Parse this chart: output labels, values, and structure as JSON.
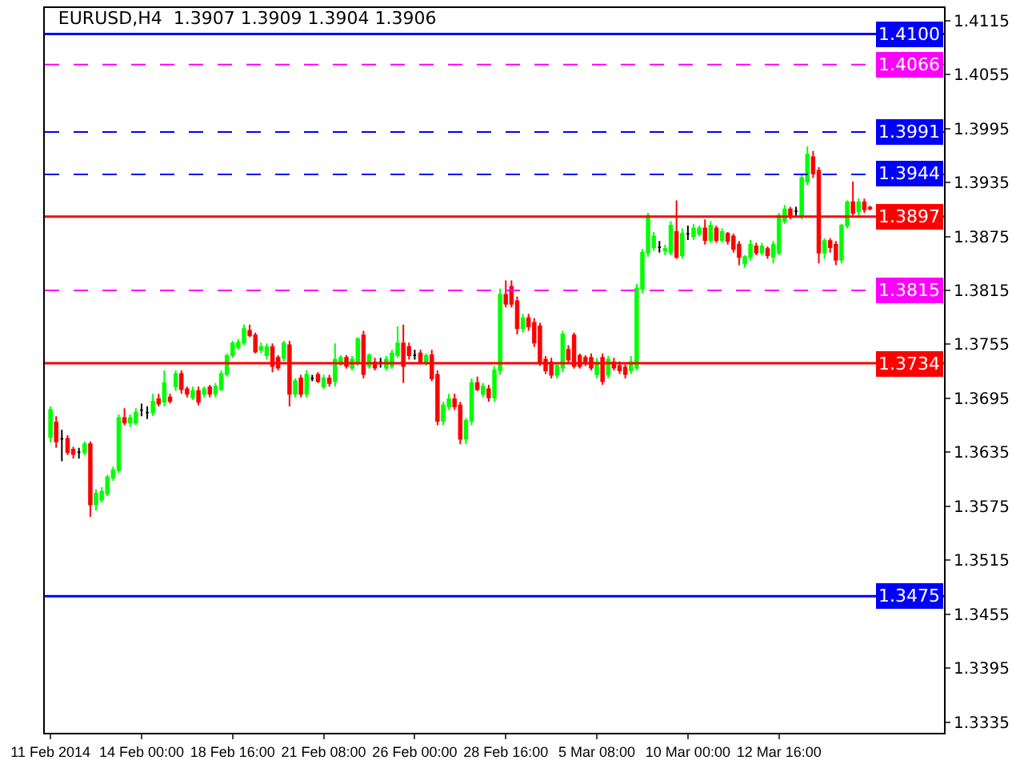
{
  "chart_data": {
    "type": "candlestick",
    "title": "EURUSD,H4  1.3907 1.3909 1.3904 1.3906",
    "categories": [
      "11 Feb 2014",
      null,
      null,
      null,
      null,
      null,
      null,
      null,
      null,
      null,
      null,
      null,
      null,
      null,
      null,
      null,
      "14 Feb 00:00",
      null,
      null,
      null,
      null,
      null,
      null,
      null,
      null,
      null,
      null,
      null,
      null,
      null,
      null,
      null,
      "18 Feb 16:00",
      null,
      null,
      null,
      null,
      null,
      null,
      null,
      null,
      null,
      null,
      null,
      null,
      null,
      null,
      null,
      "21 Feb 08:00",
      null,
      null,
      null,
      null,
      null,
      null,
      null,
      null,
      null,
      null,
      null,
      null,
      null,
      null,
      null,
      "26 Feb 00:00",
      null,
      null,
      null,
      null,
      null,
      null,
      null,
      null,
      null,
      null,
      null,
      null,
      null,
      null,
      null,
      "28 Feb 16:00",
      null,
      null,
      null,
      null,
      null,
      null,
      null,
      null,
      null,
      null,
      null,
      null,
      null,
      null,
      null,
      "5 Mar 08:00",
      null,
      null,
      null,
      null,
      null,
      null,
      null,
      null,
      null,
      null,
      null,
      null,
      null,
      null,
      null,
      "10 Mar 00:00",
      null,
      null,
      null,
      null,
      null,
      null,
      null,
      null,
      null,
      null,
      null,
      null,
      null,
      null,
      null,
      "12 Mar 16:00",
      null,
      null,
      null,
      null,
      null,
      null,
      null,
      null,
      null,
      null,
      null,
      null,
      null,
      null,
      null,
      null
    ],
    "ohlc": [
      [
        1.3652,
        1.3686,
        1.3646,
        1.3682
      ],
      [
        1.3668,
        1.3675,
        1.364,
        1.3647
      ],
      [
        1.365,
        1.366,
        1.3625,
        1.365
      ],
      [
        1.365,
        1.3654,
        1.3632,
        1.3635
      ],
      [
        1.3638,
        1.3641,
        1.3628,
        1.3633
      ],
      [
        1.3635,
        1.364,
        1.3628,
        1.3635
      ],
      [
        1.3635,
        1.3647,
        1.3632,
        1.3644
      ],
      [
        1.3644,
        1.3647,
        1.3563,
        1.3577
      ],
      [
        1.3577,
        1.3594,
        1.357,
        1.3589
      ],
      [
        1.3582,
        1.3596,
        1.3579,
        1.3591
      ],
      [
        1.3589,
        1.361,
        1.3586,
        1.3607
      ],
      [
        1.3607,
        1.3619,
        1.3603,
        1.3615
      ],
      [
        1.3615,
        1.3677,
        1.3612,
        1.3673
      ],
      [
        1.3673,
        1.3684,
        1.3665,
        1.3668
      ],
      [
        1.3668,
        1.3677,
        1.3663,
        1.3673
      ],
      [
        1.3668,
        1.3684,
        1.3665,
        1.3679
      ],
      [
        1.3682,
        1.3689,
        1.3675,
        1.3682
      ],
      [
        1.3679,
        1.3686,
        1.3672,
        1.3679
      ],
      [
        1.3679,
        1.37,
        1.3675,
        1.3691
      ],
      [
        1.3694,
        1.37,
        1.3686,
        1.3689
      ],
      [
        1.3691,
        1.3726,
        1.3686,
        1.3712
      ],
      [
        1.3696,
        1.37,
        1.3689,
        1.3692
      ],
      [
        1.3708,
        1.3726,
        1.3703,
        1.3722
      ],
      [
        1.3722,
        1.3726,
        1.37,
        1.3705
      ],
      [
        1.3705,
        1.3708,
        1.3696,
        1.37
      ],
      [
        1.3696,
        1.3708,
        1.3693,
        1.3703
      ],
      [
        1.3703,
        1.3708,
        1.3687,
        1.3691
      ],
      [
        1.37,
        1.3708,
        1.3696,
        1.3705
      ],
      [
        1.3707,
        1.371,
        1.3696,
        1.37
      ],
      [
        1.37,
        1.3712,
        1.3696,
        1.3708
      ],
      [
        1.3705,
        1.3726,
        1.3703,
        1.3722
      ],
      [
        1.3722,
        1.3745,
        1.3719,
        1.3742
      ],
      [
        1.3743,
        1.3759,
        1.374,
        1.3756
      ],
      [
        1.3752,
        1.3761,
        1.3749,
        1.3757
      ],
      [
        1.3757,
        1.3777,
        1.3754,
        1.3772
      ],
      [
        1.377,
        1.3777,
        1.3763,
        1.3765
      ],
      [
        1.3765,
        1.3768,
        1.3745,
        1.3747
      ],
      [
        1.3749,
        1.3757,
        1.3745,
        1.3752
      ],
      [
        1.3743,
        1.3756,
        1.3738,
        1.3752
      ],
      [
        1.3752,
        1.3756,
        1.3724,
        1.3731
      ],
      [
        1.374,
        1.3743,
        1.3726,
        1.3729
      ],
      [
        1.374,
        1.3759,
        1.3736,
        1.3756
      ],
      [
        1.3754,
        1.3759,
        1.3686,
        1.37
      ],
      [
        1.37,
        1.3717,
        1.3696,
        1.3714
      ],
      [
        1.3717,
        1.3721,
        1.3696,
        1.37
      ],
      [
        1.37,
        1.3726,
        1.3696,
        1.3721
      ],
      [
        1.3717,
        1.3721,
        1.3714,
        1.3717
      ],
      [
        1.3721,
        1.3724,
        1.3712,
        1.3714
      ],
      [
        1.3708,
        1.3721,
        1.3705,
        1.3717
      ],
      [
        1.3717,
        1.3721,
        1.3708,
        1.3712
      ],
      [
        1.3714,
        1.3756,
        1.3708,
        1.3738
      ],
      [
        1.3733,
        1.3743,
        1.3731,
        1.374
      ],
      [
        1.374,
        1.3743,
        1.3728,
        1.3731
      ],
      [
        1.3729,
        1.3742,
        1.3726,
        1.3738
      ],
      [
        1.3735,
        1.3763,
        1.3731,
        1.3761
      ],
      [
        1.3765,
        1.377,
        1.3717,
        1.3722
      ],
      [
        1.3731,
        1.3745,
        1.3728,
        1.3743
      ],
      [
        1.3735,
        1.374,
        1.3726,
        1.3729
      ],
      [
        1.3735,
        1.374,
        1.3729,
        1.3735
      ],
      [
        1.3729,
        1.3742,
        1.3726,
        1.3738
      ],
      [
        1.3731,
        1.3749,
        1.3728,
        1.3745
      ],
      [
        1.3743,
        1.3775,
        1.374,
        1.3756
      ],
      [
        1.3756,
        1.3777,
        1.3712,
        1.3731
      ],
      [
        1.3752,
        1.3757,
        1.3738,
        1.3743
      ],
      [
        1.3743,
        1.3749,
        1.3738,
        1.3743
      ],
      [
        1.3745,
        1.3749,
        1.3733,
        1.3736
      ],
      [
        1.3735,
        1.3745,
        1.3731,
        1.3742
      ],
      [
        1.3743,
        1.3749,
        1.3714,
        1.3717
      ],
      [
        1.3721,
        1.3726,
        1.3665,
        1.367
      ],
      [
        1.367,
        1.3691,
        1.3665,
        1.3687
      ],
      [
        1.3686,
        1.37,
        1.3682,
        1.3694
      ],
      [
        1.3694,
        1.37,
        1.3682,
        1.3686
      ],
      [
        1.3687,
        1.3691,
        1.3644,
        1.365
      ],
      [
        1.365,
        1.3673,
        1.3644,
        1.367
      ],
      [
        1.367,
        1.3717,
        1.3665,
        1.3712
      ],
      [
        1.3712,
        1.3719,
        1.3703,
        1.3705
      ],
      [
        1.37,
        1.3712,
        1.3696,
        1.3708
      ],
      [
        1.3705,
        1.371,
        1.3691,
        1.3696
      ],
      [
        1.3696,
        1.3731,
        1.3691,
        1.3726
      ],
      [
        1.3726,
        1.3817,
        1.3721,
        1.381
      ],
      [
        1.381,
        1.3826,
        1.3796,
        1.38
      ],
      [
        1.3819,
        1.3826,
        1.3796,
        1.38
      ],
      [
        1.3803,
        1.3808,
        1.3766,
        1.3773
      ],
      [
        1.3773,
        1.3789,
        1.3768,
        1.3784
      ],
      [
        1.3784,
        1.3789,
        1.377,
        1.3775
      ],
      [
        1.3779,
        1.3784,
        1.3752,
        1.3757
      ],
      [
        1.3775,
        1.3779,
        1.3731,
        1.3735
      ],
      [
        1.3738,
        1.3742,
        1.3722,
        1.3726
      ],
      [
        1.3735,
        1.374,
        1.3717,
        1.3721
      ],
      [
        1.3721,
        1.3735,
        1.3717,
        1.3731
      ],
      [
        1.3729,
        1.377,
        1.3724,
        1.3766
      ],
      [
        1.3749,
        1.3754,
        1.3735,
        1.3738
      ],
      [
        1.3765,
        1.3768,
        1.3728,
        1.3731
      ],
      [
        1.3742,
        1.3745,
        1.3728,
        1.3731
      ],
      [
        1.374,
        1.3743,
        1.3731,
        1.3735
      ],
      [
        1.374,
        1.3745,
        1.3726,
        1.3729
      ],
      [
        1.3722,
        1.374,
        1.3717,
        1.3735
      ],
      [
        1.374,
        1.3745,
        1.371,
        1.3714
      ],
      [
        1.3721,
        1.3742,
        1.3717,
        1.3738
      ],
      [
        1.3735,
        1.374,
        1.3726,
        1.3729
      ],
      [
        1.3731,
        1.3736,
        1.3722,
        1.3726
      ],
      [
        1.3729,
        1.3733,
        1.3717,
        1.3722
      ],
      [
        1.3726,
        1.3742,
        1.3722,
        1.3735
      ],
      [
        1.3729,
        1.3822,
        1.3726,
        1.3817
      ],
      [
        1.3817,
        1.3861,
        1.3812,
        1.3857
      ],
      [
        1.3857,
        1.3901,
        1.3852,
        1.3898
      ],
      [
        1.3863,
        1.388,
        1.3859,
        1.3875
      ],
      [
        1.3863,
        1.387,
        1.3857,
        1.3863
      ],
      [
        1.3859,
        1.3866,
        1.3854,
        1.3861
      ],
      [
        1.3857,
        1.3892,
        1.3854,
        1.3887
      ],
      [
        1.388,
        1.3915,
        1.385,
        1.3852
      ],
      [
        1.3854,
        1.3884,
        1.385,
        1.3878
      ],
      [
        1.3878,
        1.3887,
        1.3871,
        1.3878
      ],
      [
        1.3875,
        1.3889,
        1.3871,
        1.3884
      ],
      [
        1.3878,
        1.3887,
        1.3875,
        1.3884
      ],
      [
        1.3884,
        1.3894,
        1.3866,
        1.3871
      ],
      [
        1.3871,
        1.3892,
        1.3868,
        1.3887
      ],
      [
        1.3884,
        1.3887,
        1.3868,
        1.3871
      ],
      [
        1.3871,
        1.3884,
        1.3868,
        1.388
      ],
      [
        1.3878,
        1.388,
        1.3866,
        1.387
      ],
      [
        1.3875,
        1.3878,
        1.3857,
        1.3861
      ],
      [
        1.3866,
        1.387,
        1.3843,
        1.3852
      ],
      [
        1.3845,
        1.3854,
        1.384,
        1.3852
      ],
      [
        1.3852,
        1.3871,
        1.3848,
        1.3866
      ],
      [
        1.3864,
        1.3868,
        1.3854,
        1.3857
      ],
      [
        1.3857,
        1.3868,
        1.3854,
        1.3864
      ],
      [
        1.3861,
        1.3864,
        1.385,
        1.3854
      ],
      [
        1.3852,
        1.387,
        1.3845,
        1.3866
      ],
      [
        1.3857,
        1.3901,
        1.3854,
        1.3898
      ],
      [
        1.3892,
        1.391,
        1.3889,
        1.3905
      ],
      [
        1.3905,
        1.3908,
        1.3894,
        1.3898
      ],
      [
        1.3903,
        1.3908,
        1.3898,
        1.3903
      ],
      [
        1.3898,
        1.3945,
        1.3894,
        1.394
      ],
      [
        1.3936,
        1.3975,
        1.3932,
        1.3966
      ],
      [
        1.3963,
        1.397,
        1.394,
        1.3945
      ],
      [
        1.3948,
        1.3952,
        1.3845,
        1.3857
      ],
      [
        1.3857,
        1.3873,
        1.385,
        1.387
      ],
      [
        1.387,
        1.3873,
        1.3857,
        1.3863
      ],
      [
        1.3866,
        1.387,
        1.3843,
        1.3849
      ],
      [
        1.3849,
        1.3889,
        1.3845,
        1.3887
      ],
      [
        1.3887,
        1.3915,
        1.3884,
        1.3913
      ],
      [
        1.3913,
        1.3936,
        1.3898,
        1.3901
      ],
      [
        1.3903,
        1.3917,
        1.3898,
        1.3913
      ],
      [
        1.3913,
        1.3917,
        1.3901,
        1.3905
      ],
      [
        1.3907,
        1.3909,
        1.3904,
        1.3906
      ]
    ],
    "colors": [
      "#00ff00",
      "#ff0000",
      "#000000",
      "#ff0000",
      "#ff0000",
      "#000000",
      "#00ff00",
      "#ff0000",
      "#00ff00",
      "#00ff00",
      "#00ff00",
      "#00ff00",
      "#00ff00",
      "#ff0000",
      "#00ff00",
      "#00ff00",
      "#000000",
      "#000000",
      "#00ff00",
      "#ff0000",
      "#00ff00",
      "#ff0000",
      "#00ff00",
      "#ff0000",
      "#ff0000",
      "#00ff00",
      "#ff0000",
      "#00ff00",
      "#ff0000",
      "#00ff00",
      "#00ff00",
      "#00ff00",
      "#00ff00",
      "#00ff00",
      "#00ff00",
      "#ff0000",
      "#ff0000",
      "#00ff00",
      "#00ff00",
      "#ff0000",
      "#ff0000",
      "#00ff00",
      "#ff0000",
      "#00ff00",
      "#ff0000",
      "#00ff00",
      "#000000",
      "#ff0000",
      "#00ff00",
      "#ff0000",
      "#00ff00",
      "#00ff00",
      "#ff0000",
      "#00ff00",
      "#00ff00",
      "#ff0000",
      "#00ff00",
      "#ff0000",
      "#000000",
      "#00ff00",
      "#00ff00",
      "#00ff00",
      "#ff0000",
      "#ff0000",
      "#000000",
      "#ff0000",
      "#00ff00",
      "#ff0000",
      "#ff0000",
      "#00ff00",
      "#00ff00",
      "#ff0000",
      "#ff0000",
      "#00ff00",
      "#00ff00",
      "#ff0000",
      "#00ff00",
      "#ff0000",
      "#00ff00",
      "#00ff00",
      "#ff0000",
      "#ff0000",
      "#ff0000",
      "#00ff00",
      "#ff0000",
      "#ff0000",
      "#ff0000",
      "#ff0000",
      "#ff0000",
      "#00ff00",
      "#00ff00",
      "#ff0000",
      "#ff0000",
      "#ff0000",
      "#ff0000",
      "#ff0000",
      "#00ff00",
      "#ff0000",
      "#00ff00",
      "#ff0000",
      "#ff0000",
      "#ff0000",
      "#00ff00",
      "#00ff00",
      "#00ff00",
      "#00ff00",
      "#00ff00",
      "#000000",
      "#00ff00",
      "#00ff00",
      "#ff0000",
      "#00ff00",
      "#000000",
      "#00ff00",
      "#00ff00",
      "#ff0000",
      "#00ff00",
      "#ff0000",
      "#00ff00",
      "#ff0000",
      "#ff0000",
      "#ff0000",
      "#00ff00",
      "#00ff00",
      "#ff0000",
      "#00ff00",
      "#ff0000",
      "#00ff00",
      "#00ff00",
      "#00ff00",
      "#ff0000",
      "#000000",
      "#00ff00",
      "#00ff00",
      "#ff0000",
      "#ff0000",
      "#00ff00",
      "#ff0000",
      "#ff0000",
      "#00ff00",
      "#00ff00",
      "#ff0000",
      "#00ff00",
      "#ff0000",
      "#ff0000"
    ],
    "ylim": [
      1.3323,
      1.4129
    ],
    "yticks": [
      1.3335,
      1.3395,
      1.3455,
      1.3515,
      1.3575,
      1.3635,
      1.3695,
      1.3755,
      1.3815,
      1.3875,
      1.3935,
      1.3995,
      1.4055,
      1.4115
    ],
    "ref_lines": [
      {
        "axis": "y",
        "value": 1.41,
        "label": "1.4100",
        "color": "#0000ff"
      },
      {
        "axis": "y",
        "value": 1.4066,
        "label": "1.4066",
        "color": "#ff00ff",
        "line_style": "dashed"
      },
      {
        "axis": "y",
        "value": 1.3991,
        "label": "1.3991",
        "color": "#0000ff",
        "line_style": "dashed"
      },
      {
        "axis": "y",
        "value": 1.3944,
        "label": "1.3944",
        "color": "#0000ff",
        "line_style": "dashed"
      },
      {
        "axis": "y",
        "value": 1.3897,
        "label": "1.3897",
        "color": "#ff0000"
      },
      {
        "axis": "y",
        "value": 1.3815,
        "label": "1.3815",
        "color": "#ff00ff",
        "line_style": "dashed"
      },
      {
        "axis": "y",
        "value": 1.3734,
        "label": "1.3734",
        "color": "#ff0000"
      },
      {
        "axis": "y",
        "value": 1.3475,
        "label": "1.3475",
        "color": "#0000ff"
      }
    ]
  }
}
